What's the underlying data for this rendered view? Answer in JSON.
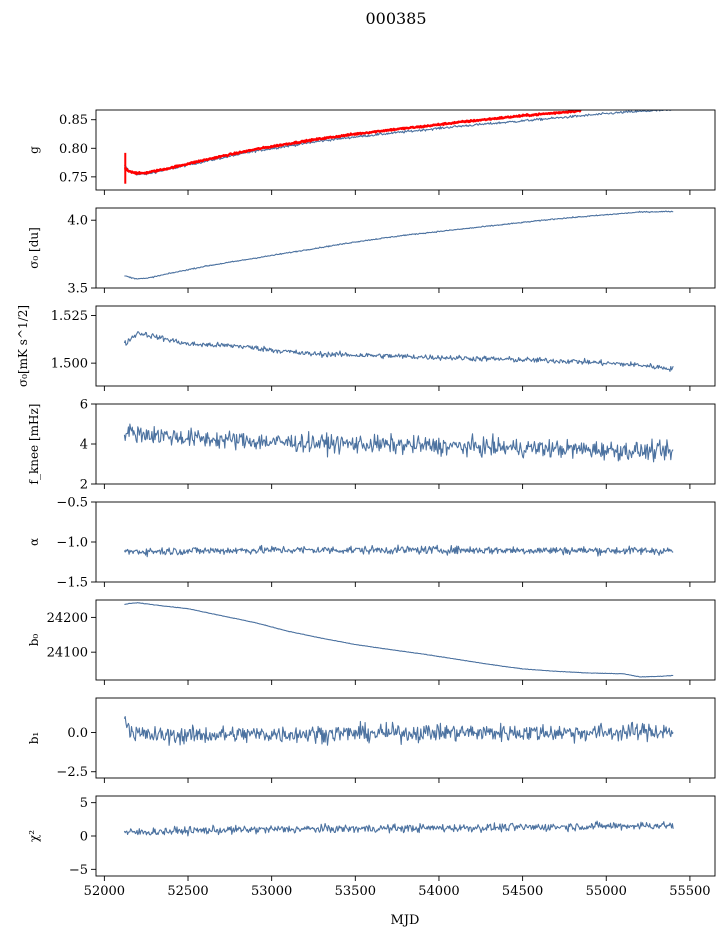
{
  "figure": {
    "title": "000385",
    "xlabel": "MJD",
    "xlim": [
      51950,
      55650
    ],
    "xticks": [
      52000,
      52500,
      53000,
      53500,
      54000,
      54500,
      55000,
      55500
    ],
    "xtick_labels": [
      "52000",
      "52500",
      "53000",
      "53500",
      "54000",
      "54500",
      "55000",
      "55500"
    ]
  },
  "colors": {
    "series": "#4c72a0",
    "highlight": "#ff0000",
    "axis": "#000000"
  },
  "chart_data": [
    {
      "type": "line",
      "id": "g",
      "ylabel": "g",
      "ylim": [
        0.727,
        0.867
      ],
      "yticks": [
        0.75,
        0.8,
        0.85
      ],
      "ytick_labels": [
        "0.75",
        "0.80",
        "0.85"
      ],
      "series": [
        {
          "color": "#4c72a0",
          "noise": 0.002,
          "x": [
            52120,
            52150,
            52200,
            52250,
            52300,
            52400,
            52500,
            52700,
            52900,
            53100,
            53300,
            53500,
            53700,
            53900,
            54100,
            54300,
            54500,
            54700,
            54900,
            55100,
            55300,
            55400
          ],
          "y": [
            0.77,
            0.76,
            0.754,
            0.755,
            0.758,
            0.764,
            0.771,
            0.783,
            0.795,
            0.804,
            0.813,
            0.82,
            0.826,
            0.832,
            0.838,
            0.843,
            0.848,
            0.853,
            0.858,
            0.863,
            0.866,
            0.867
          ]
        },
        {
          "color": "#ff0000",
          "noise": 0.0015,
          "x": [
            52120,
            52150,
            52200,
            52250,
            52300,
            52400,
            52500,
            52700,
            52900,
            53100,
            53300,
            53500,
            53700,
            53900,
            54100,
            54300,
            54500,
            54700,
            54850
          ],
          "y": [
            0.765,
            0.76,
            0.756,
            0.757,
            0.76,
            0.766,
            0.773,
            0.786,
            0.798,
            0.808,
            0.817,
            0.825,
            0.832,
            0.838,
            0.845,
            0.851,
            0.857,
            0.862,
            0.866
          ]
        }
      ],
      "errorbar": {
        "x": 52125,
        "y": 0.765,
        "yerr": 0.027,
        "color": "#ff0000"
      }
    },
    {
      "type": "line",
      "id": "sigma0_du",
      "ylabel": "σ₀ [du]",
      "ylim": [
        3.5,
        4.09
      ],
      "yticks": [
        3.5,
        4.0
      ],
      "ytick_labels": [
        "3.5",
        "4.0"
      ],
      "series": [
        {
          "color": "#4c72a0",
          "noise": 0.004,
          "x": [
            52120,
            52180,
            52250,
            52400,
            52600,
            52800,
            53000,
            53200,
            53500,
            53800,
            54100,
            54400,
            54700,
            55000,
            55200,
            55400
          ],
          "y": [
            3.59,
            3.57,
            3.57,
            3.61,
            3.66,
            3.7,
            3.74,
            3.78,
            3.84,
            3.89,
            3.93,
            3.97,
            4.01,
            4.04,
            4.06,
            4.065
          ]
        }
      ]
    },
    {
      "type": "line",
      "id": "sigma0_mk",
      "ylabel": "σ₀[mK s^1/2]",
      "ylim": [
        1.488,
        1.53
      ],
      "yticks": [
        1.5,
        1.525
      ],
      "ytick_labels": [
        "1.500",
        "1.525"
      ],
      "series": [
        {
          "color": "#4c72a0",
          "noise": 0.0014,
          "x": [
            52120,
            52200,
            52300,
            52500,
            52800,
            53200,
            53600,
            54000,
            54400,
            54800,
            55200,
            55400
          ],
          "y": [
            1.51,
            1.516,
            1.514,
            1.51,
            1.509,
            1.505,
            1.504,
            1.503,
            1.502,
            1.501,
            1.499,
            1.497
          ]
        }
      ]
    },
    {
      "type": "line",
      "id": "fknee",
      "ylabel": "f_knee [mHz]",
      "ylim": [
        2,
        6
      ],
      "yticks": [
        2,
        4,
        6
      ],
      "ytick_labels": [
        "2",
        "4",
        "6"
      ],
      "series": [
        {
          "color": "#4c72a0",
          "noise": 0.45,
          "x": [
            52120,
            52500,
            53000,
            53500,
            54000,
            54500,
            55000,
            55400
          ],
          "y": [
            4.6,
            4.3,
            4.1,
            4.0,
            3.9,
            3.8,
            3.7,
            3.6
          ]
        }
      ]
    },
    {
      "type": "line",
      "id": "alpha",
      "ylabel": "α",
      "ylim": [
        -1.5,
        -0.5
      ],
      "yticks": [
        -1.5,
        -1.0,
        -0.5
      ],
      "ytick_labels": [
        "−1.5",
        "−1.0",
        "−0.5"
      ],
      "series": [
        {
          "color": "#4c72a0",
          "noise": 0.05,
          "x": [
            52120,
            53000,
            54000,
            55400
          ],
          "y": [
            -1.12,
            -1.1,
            -1.1,
            -1.11
          ]
        }
      ]
    },
    {
      "type": "line",
      "id": "b0",
      "ylabel": "b₀",
      "ylim": [
        24020,
        24250
      ],
      "yticks": [
        24100,
        24200
      ],
      "ytick_labels": [
        "24100",
        "24200"
      ],
      "series": [
        {
          "color": "#4c72a0",
          "noise": 0.6,
          "x": [
            52120,
            52150,
            52200,
            52300,
            52500,
            52700,
            52900,
            53100,
            53300,
            53500,
            53700,
            53900,
            54100,
            54300,
            54500,
            54700,
            54900,
            55100,
            55200,
            55300,
            55400
          ],
          "y": [
            24237,
            24240,
            24242,
            24236,
            24225,
            24205,
            24185,
            24160,
            24140,
            24122,
            24108,
            24095,
            24080,
            24065,
            24052,
            24045,
            24040,
            24038,
            24029,
            24030,
            24033
          ]
        }
      ]
    },
    {
      "type": "line",
      "id": "b1",
      "ylabel": "b₁",
      "ylim": [
        -2.9,
        2.2
      ],
      "yticks": [
        -2.5,
        0.0
      ],
      "ytick_labels": [
        "−2.5",
        "0.0"
      ],
      "series": [
        {
          "color": "#4c72a0",
          "noise": 0.55,
          "x": [
            52120,
            52150,
            52200,
            52300,
            53000,
            54000,
            55000,
            55400
          ],
          "y": [
            1.2,
            0.2,
            -0.1,
            -0.2,
            -0.1,
            0.0,
            0.0,
            0.1
          ]
        }
      ]
    },
    {
      "type": "line",
      "id": "chi2",
      "ylabel": "χ²",
      "ylim": [
        -6,
        6
      ],
      "yticks": [
        -5,
        0,
        5
      ],
      "ytick_labels": [
        "−5",
        "0",
        "5"
      ],
      "series": [
        {
          "color": "#4c72a0",
          "noise": 0.6,
          "x": [
            52120,
            52500,
            53000,
            53500,
            54000,
            54500,
            55000,
            55400
          ],
          "y": [
            0.5,
            0.8,
            1.0,
            1.1,
            1.2,
            1.3,
            1.5,
            1.6
          ]
        }
      ]
    }
  ]
}
